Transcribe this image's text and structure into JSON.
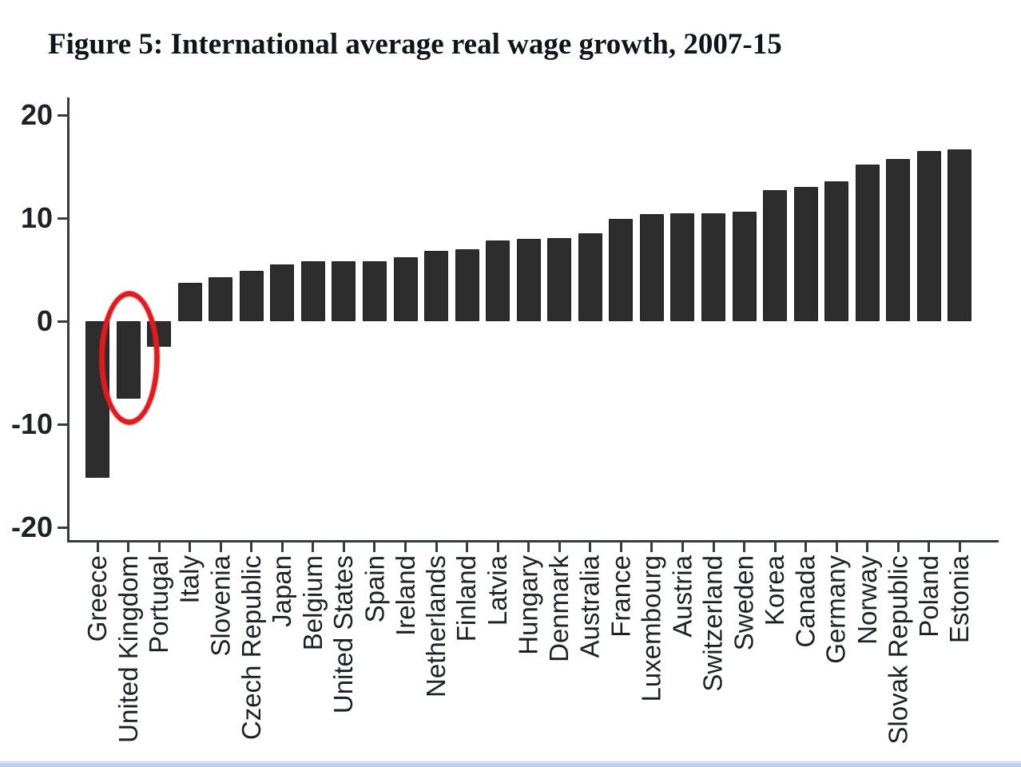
{
  "title": "Figure 5: International average real wage growth, 2007-15",
  "chart_data": {
    "type": "bar",
    "title": "Figure 5: International average real wage growth, 2007-15",
    "categories": [
      "Greece",
      "United Kingdom",
      "Portugal",
      "Italy",
      "Slovenia",
      "Czech Republic",
      "Japan",
      "Belgium",
      "United States",
      "Spain",
      "Ireland",
      "Netherlands",
      "Finland",
      "Latvia",
      "Hungary",
      "Denmark",
      "Australia",
      "France",
      "Luxembourg",
      "Austria",
      "Switzerland",
      "Sweden",
      "Korea",
      "Canada",
      "Germany",
      "Norway",
      "Slovak Republic",
      "Poland",
      "Estonia"
    ],
    "values": [
      -15.2,
      -7.5,
      -2.5,
      3.7,
      4.3,
      4.9,
      5.5,
      5.8,
      5.8,
      5.8,
      6.2,
      6.8,
      7.0,
      7.8,
      8.0,
      8.1,
      8.5,
      9.9,
      10.4,
      10.5,
      10.5,
      10.6,
      12.7,
      13.0,
      13.6,
      15.2,
      15.7,
      16.5,
      16.7
    ],
    "xlabel": "",
    "ylabel": "",
    "y_ticks": [
      20,
      10,
      0,
      -10,
      -20
    ],
    "ylim": [
      -22,
      22
    ],
    "grid": false,
    "legend": "none",
    "bar_color": "#2d2d2d",
    "axis_color": "#383c41",
    "annotation": {
      "type": "ellipse",
      "target": "United Kingdom",
      "color": "#e01b1e"
    }
  },
  "footer": {
    "strip_color": "#c3d6f2"
  }
}
